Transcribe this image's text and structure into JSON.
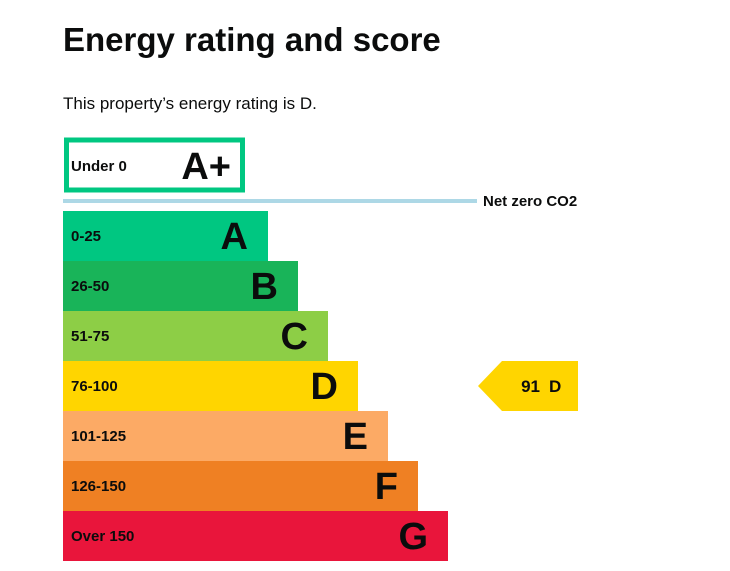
{
  "page": {
    "title": "Energy rating and score",
    "intro": "This property’s energy rating is D."
  },
  "colors": {
    "aplus_border": "#00c781",
    "net_zero_line": "#add8e6"
  },
  "chart_data": {
    "type": "bar",
    "orientation": "horizontal",
    "title": "",
    "xlabel": "",
    "ylabel": "",
    "categories": [
      "A+",
      "A",
      "B",
      "C",
      "D",
      "E",
      "F",
      "G"
    ],
    "ranges": [
      "Under 0",
      "0-25",
      "26-50",
      "51-75",
      "76-100",
      "101-125",
      "126-150",
      "Over 150"
    ],
    "colors": [
      "#ffffff",
      "#00c781",
      "#19b459",
      "#8dce46",
      "#ffd500",
      "#fcaa65",
      "#ef8023",
      "#e9153b"
    ],
    "threshold_line": {
      "label": "Net zero CO2"
    },
    "current": {
      "score": 91,
      "band": "D",
      "score_label": "91",
      "band_label": "D",
      "color": "#ffd500"
    }
  }
}
